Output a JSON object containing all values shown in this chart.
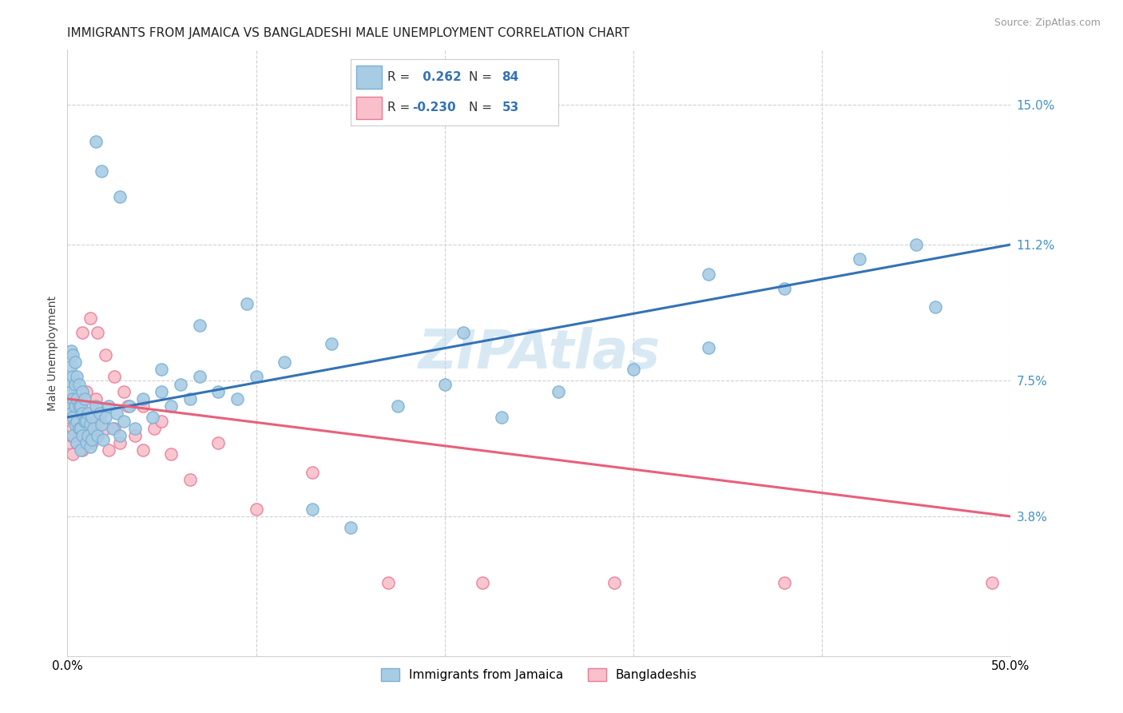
{
  "title": "IMMIGRANTS FROM JAMAICA VS BANGLADESHI MALE UNEMPLOYMENT CORRELATION CHART",
  "source": "Source: ZipAtlas.com",
  "ylabel": "Male Unemployment",
  "xlim": [
    0.0,
    0.5
  ],
  "ylim": [
    0.0,
    0.165
  ],
  "ytick_values": [
    0.15,
    0.112,
    0.075,
    0.038
  ],
  "ytick_labels": [
    "15.0%",
    "11.2%",
    "7.5%",
    "3.8%"
  ],
  "series1_color": "#a8cce4",
  "series1_edge": "#7ab0d4",
  "series2_color": "#f9c0cb",
  "series2_edge": "#e87a96",
  "line1_color": "#3472b5",
  "line2_color": "#e8607a",
  "R1": 0.262,
  "N1": 84,
  "R2": -0.23,
  "N2": 53,
  "watermark": "ZIPAtlas",
  "watermark_color": "#b8d8ec",
  "legend_label1": "Immigrants from Jamaica",
  "legend_label2": "Bangladeshis",
  "blue_scatter_x": [
    0.001,
    0.001,
    0.002,
    0.002,
    0.002,
    0.002,
    0.003,
    0.003,
    0.003,
    0.003,
    0.003,
    0.004,
    0.004,
    0.004,
    0.004,
    0.005,
    0.005,
    0.005,
    0.005,
    0.006,
    0.006,
    0.006,
    0.007,
    0.007,
    0.007,
    0.008,
    0.008,
    0.008,
    0.009,
    0.009,
    0.01,
    0.01,
    0.011,
    0.011,
    0.012,
    0.012,
    0.013,
    0.013,
    0.014,
    0.015,
    0.016,
    0.017,
    0.018,
    0.019,
    0.02,
    0.022,
    0.024,
    0.026,
    0.028,
    0.03,
    0.033,
    0.036,
    0.04,
    0.045,
    0.05,
    0.055,
    0.06,
    0.065,
    0.07,
    0.08,
    0.09,
    0.1,
    0.115,
    0.13,
    0.15,
    0.175,
    0.2,
    0.23,
    0.26,
    0.3,
    0.34,
    0.38,
    0.42,
    0.46,
    0.05,
    0.07,
    0.095,
    0.14,
    0.21,
    0.34,
    0.45,
    0.028,
    0.018,
    0.015
  ],
  "blue_scatter_y": [
    0.068,
    0.074,
    0.066,
    0.072,
    0.079,
    0.083,
    0.06,
    0.065,
    0.07,
    0.076,
    0.082,
    0.063,
    0.068,
    0.074,
    0.08,
    0.058,
    0.064,
    0.07,
    0.076,
    0.062,
    0.068,
    0.074,
    0.056,
    0.062,
    0.068,
    0.06,
    0.066,
    0.072,
    0.064,
    0.07,
    0.058,
    0.064,
    0.06,
    0.066,
    0.057,
    0.063,
    0.059,
    0.065,
    0.062,
    0.068,
    0.06,
    0.066,
    0.063,
    0.059,
    0.065,
    0.068,
    0.062,
    0.066,
    0.06,
    0.064,
    0.068,
    0.062,
    0.07,
    0.065,
    0.072,
    0.068,
    0.074,
    0.07,
    0.076,
    0.072,
    0.07,
    0.076,
    0.08,
    0.04,
    0.035,
    0.068,
    0.074,
    0.065,
    0.072,
    0.078,
    0.084,
    0.1,
    0.108,
    0.095,
    0.078,
    0.09,
    0.096,
    0.085,
    0.088,
    0.104,
    0.112,
    0.125,
    0.132,
    0.14
  ],
  "pink_scatter_x": [
    0.001,
    0.001,
    0.002,
    0.002,
    0.003,
    0.003,
    0.003,
    0.004,
    0.004,
    0.005,
    0.005,
    0.006,
    0.006,
    0.007,
    0.007,
    0.008,
    0.008,
    0.009,
    0.01,
    0.01,
    0.011,
    0.012,
    0.013,
    0.014,
    0.015,
    0.016,
    0.018,
    0.02,
    0.022,
    0.025,
    0.028,
    0.032,
    0.036,
    0.04,
    0.046,
    0.055,
    0.065,
    0.08,
    0.1,
    0.13,
    0.17,
    0.22,
    0.29,
    0.38,
    0.49,
    0.008,
    0.012,
    0.016,
    0.02,
    0.025,
    0.03,
    0.04,
    0.05
  ],
  "pink_scatter_y": [
    0.058,
    0.065,
    0.06,
    0.07,
    0.055,
    0.062,
    0.068,
    0.064,
    0.07,
    0.058,
    0.065,
    0.06,
    0.066,
    0.062,
    0.068,
    0.056,
    0.064,
    0.06,
    0.066,
    0.072,
    0.062,
    0.068,
    0.058,
    0.064,
    0.07,
    0.06,
    0.066,
    0.062,
    0.056,
    0.062,
    0.058,
    0.068,
    0.06,
    0.056,
    0.062,
    0.055,
    0.048,
    0.058,
    0.04,
    0.05,
    0.02,
    0.02,
    0.02,
    0.02,
    0.02,
    0.088,
    0.092,
    0.088,
    0.082,
    0.076,
    0.072,
    0.068,
    0.064
  ],
  "blue_line_y_start": 0.065,
  "blue_line_y_end": 0.112,
  "pink_line_y_start": 0.07,
  "pink_line_y_end": 0.038,
  "grid_color": "#d0d0d0",
  "bg_color": "#ffffff",
  "title_fontsize": 11,
  "axis_label_fontsize": 10,
  "tick_fontsize": 11,
  "source_fontsize": 9
}
